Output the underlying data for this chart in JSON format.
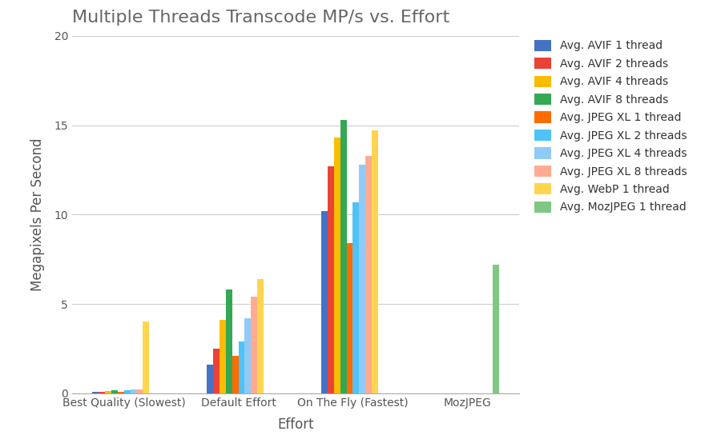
{
  "title": "Multiple Threads Transcode MP/s vs. Effort",
  "xlabel": "Effort",
  "ylabel": "Megapixels Per Second",
  "categories": [
    "Best Quality (Slowest)",
    "Default Effort",
    "On The Fly (Fastest)",
    "MozJPEG"
  ],
  "series": [
    {
      "label": "Avg. AVIF 1 thread",
      "color": "#4472C4",
      "values": [
        0.07,
        1.6,
        10.2,
        0
      ]
    },
    {
      "label": "Avg. AVIF 2 threads",
      "color": "#EA4335",
      "values": [
        0.1,
        2.5,
        12.7,
        0
      ]
    },
    {
      "label": "Avg. AVIF 4 threads",
      "color": "#FBBC04",
      "values": [
        0.12,
        4.1,
        14.3,
        0
      ]
    },
    {
      "label": "Avg. AVIF 8 threads",
      "color": "#34A853",
      "values": [
        0.18,
        5.8,
        15.3,
        0
      ]
    },
    {
      "label": "Avg. JPEG XL 1 thread",
      "color": "#FF6D00",
      "values": [
        0.1,
        2.1,
        8.4,
        0
      ]
    },
    {
      "label": "Avg. JPEG XL 2 threads",
      "color": "#4FC3F7",
      "values": [
        0.18,
        2.9,
        10.7,
        0
      ]
    },
    {
      "label": "Avg. JPEG XL 4 threads",
      "color": "#90CAF9",
      "values": [
        0.2,
        4.2,
        12.8,
        0
      ]
    },
    {
      "label": "Avg. JPEG XL 8 threads",
      "color": "#FFAB91",
      "values": [
        0.22,
        5.4,
        13.3,
        0
      ]
    },
    {
      "label": "Avg. WebP 1 thread",
      "color": "#FFD54F",
      "values": [
        4.0,
        6.4,
        14.7,
        0
      ]
    },
    {
      "label": "Avg. MozJPEG 1 thread",
      "color": "#81C784",
      "values": [
        0,
        0,
        0,
        7.2
      ]
    }
  ],
  "ylim": [
    0,
    20
  ],
  "yticks": [
    0,
    5,
    10,
    15,
    20
  ],
  "background_color": "#ffffff",
  "grid_color": "#cccccc",
  "title_fontsize": 16,
  "axis_fontsize": 12,
  "tick_fontsize": 10,
  "legend_fontsize": 10,
  "bar_width": 0.055,
  "bar_alpha": 1.0
}
